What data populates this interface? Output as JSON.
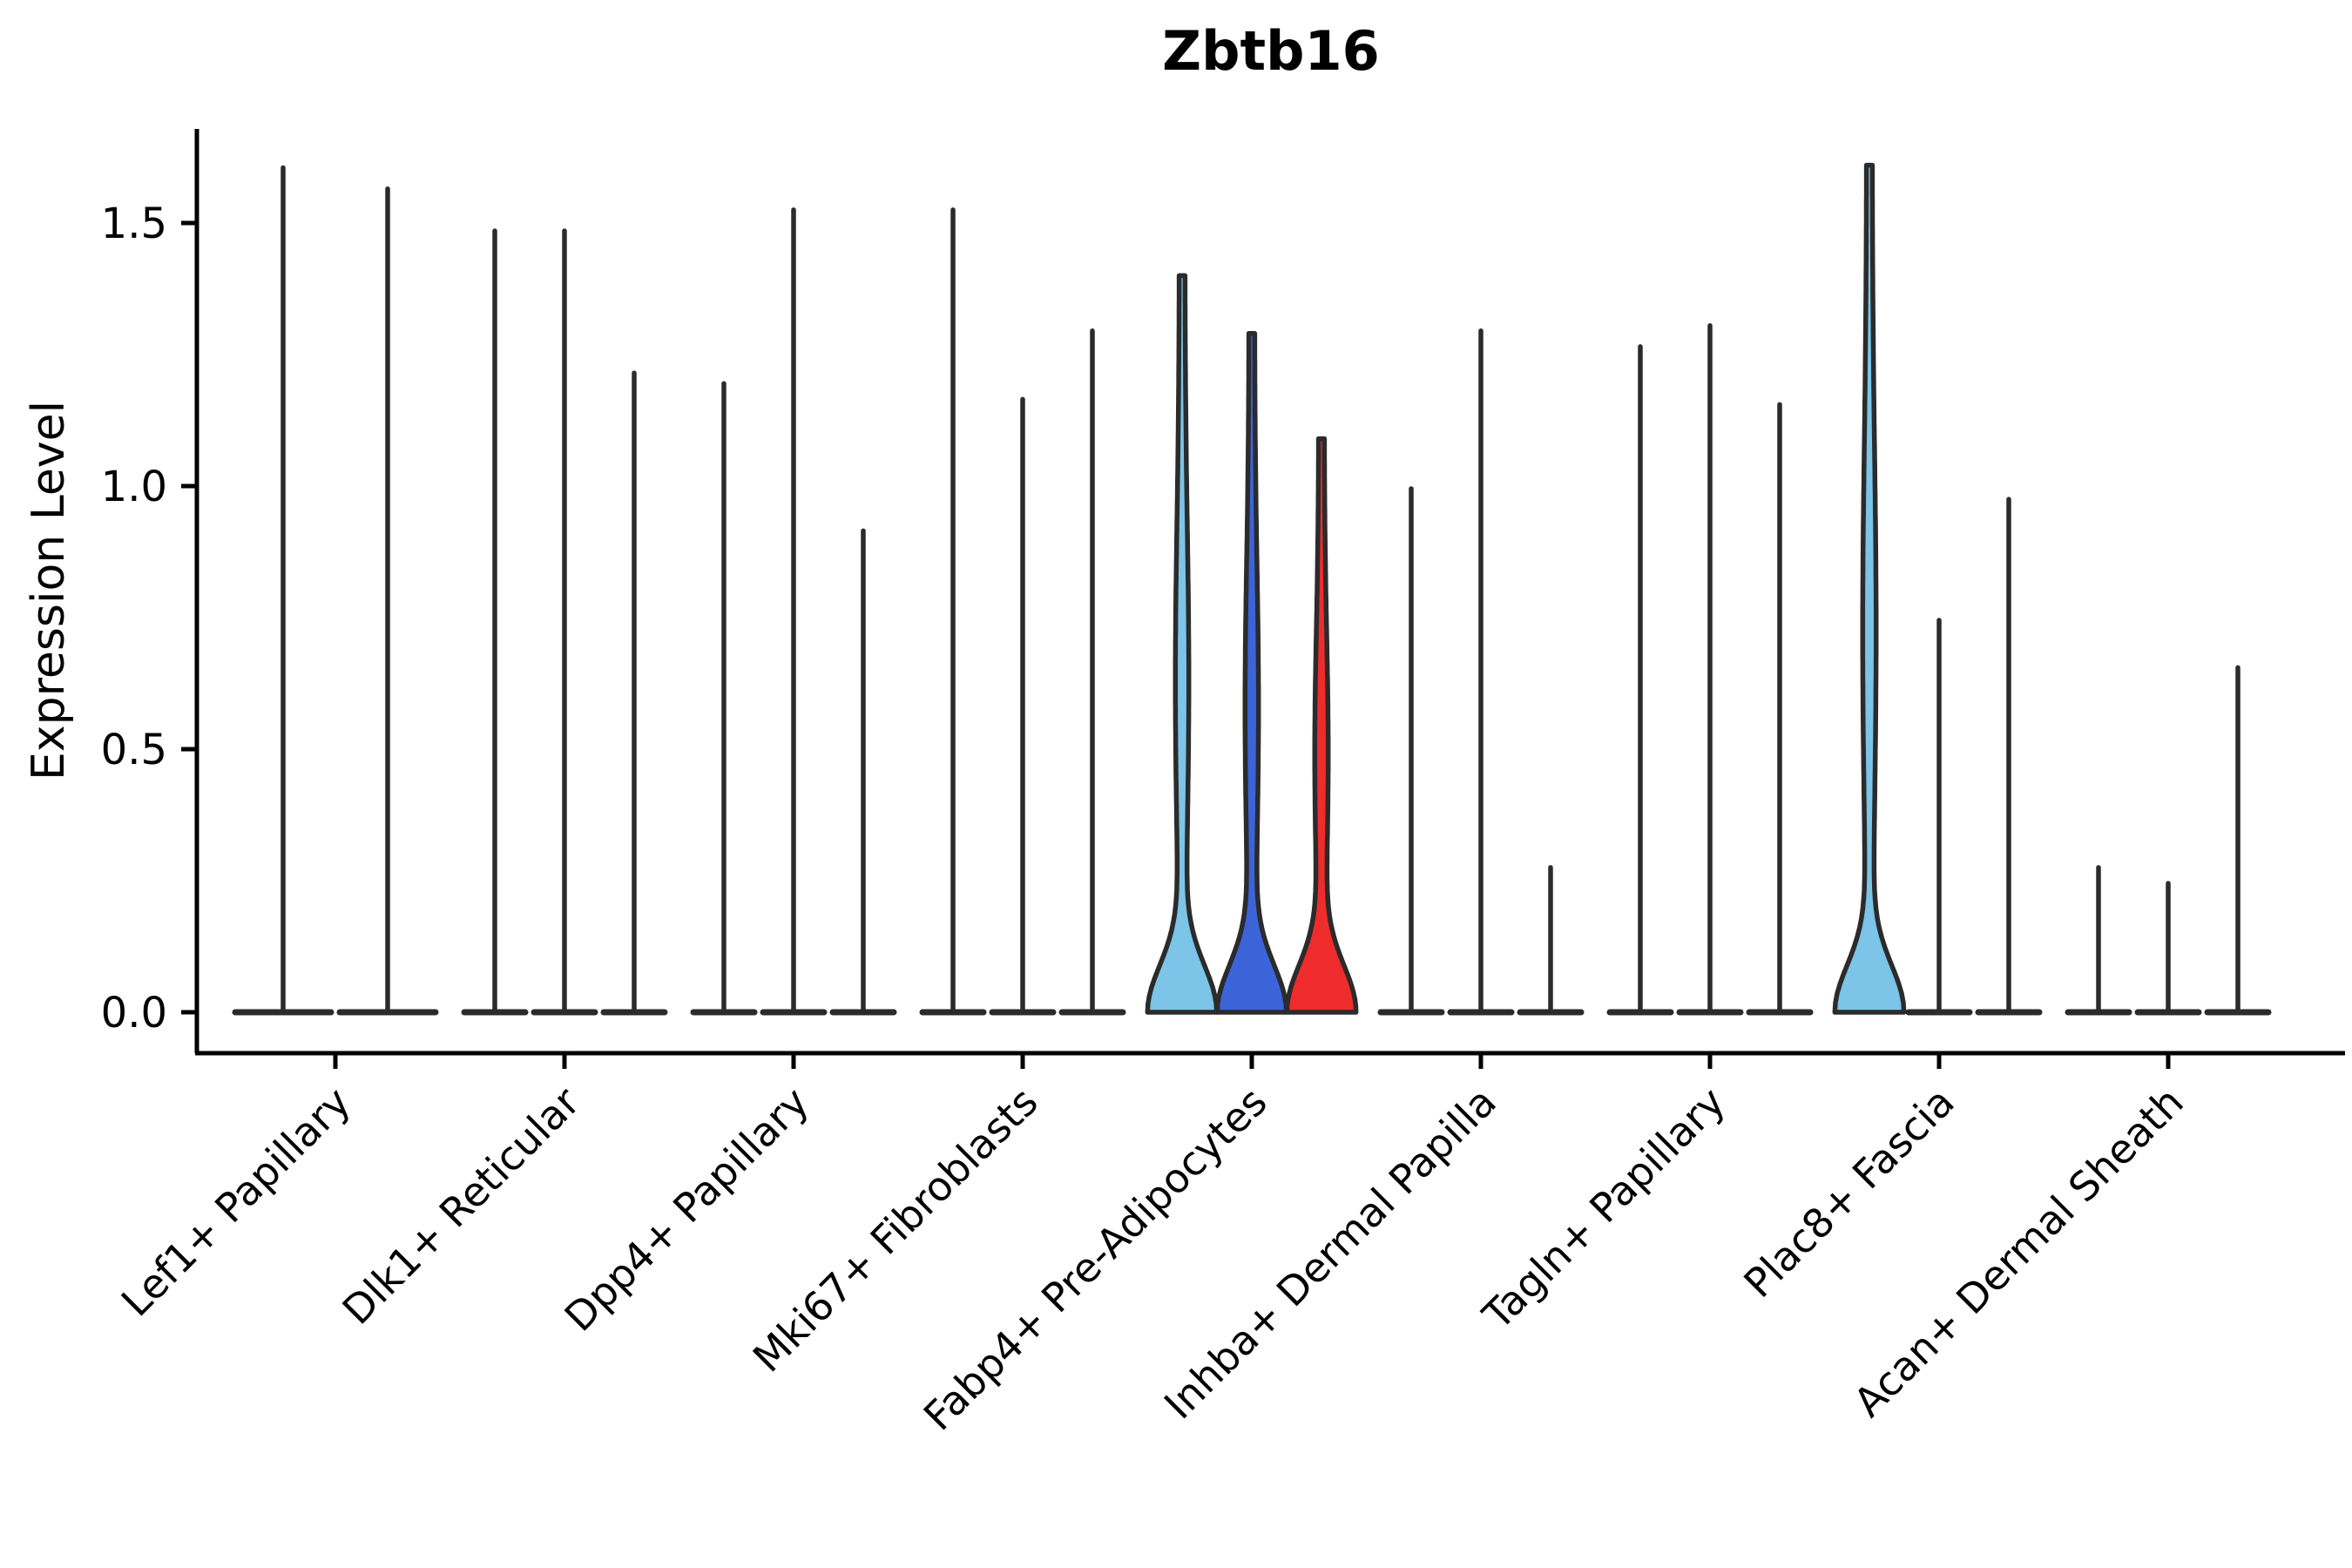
{
  "figure": {
    "title": "Zbtb16",
    "background_color": "#FFFFFF",
    "violin_edge_color": "#2B2B2B",
    "axis_color": "#000000"
  },
  "chart_data": {
    "type": "violin",
    "title": "Zbtb16",
    "ylabel": "Expression Level",
    "xlabel": "",
    "yticks": [
      0.0,
      0.5,
      1.0,
      1.5
    ],
    "ytick_labels": [
      "0.0",
      "0.5",
      "1.0",
      "1.5"
    ],
    "ylim": [
      -0.078,
      1.68
    ],
    "grid": false,
    "legend": "none",
    "categories": [
      "Lef1+ Papillary",
      "Dlk1+ Reticular",
      "Dpp4+ Papillary",
      "Mki67+ Fibroblasts",
      "Fabp4+ Pre-Adipocytes",
      "Inhba+ Dermal Papilla",
      "Tagln+ Papillary",
      "Plac8+ Fascia",
      "Acan+ Dermal Sheath"
    ],
    "groups": [
      {
        "category": "Lef1+ Papillary",
        "violins": [
          {
            "max": 1.61,
            "fill": null
          },
          {
            "max": 1.57,
            "fill": null
          }
        ]
      },
      {
        "category": "Dlk1+ Reticular",
        "violins": [
          {
            "max": 1.49,
            "fill": null
          },
          {
            "max": 1.49,
            "fill": null
          },
          {
            "max": 1.22,
            "fill": null
          }
        ]
      },
      {
        "category": "Dpp4+ Papillary",
        "violins": [
          {
            "max": 1.2,
            "fill": null
          },
          {
            "max": 1.53,
            "fill": null
          },
          {
            "max": 0.92,
            "fill": null
          }
        ]
      },
      {
        "category": "Mki67+ Fibroblasts",
        "violins": [
          {
            "max": 1.53,
            "fill": null
          },
          {
            "max": 1.17,
            "fill": null
          },
          {
            "max": 1.3,
            "fill": null
          }
        ]
      },
      {
        "category": "Fabp4+ Pre-Adipocytes",
        "violins": [
          {
            "max": 1.4,
            "fill": "#7CC4E8"
          },
          {
            "max": 1.29,
            "fill": "#3C64D9"
          },
          {
            "max": 1.09,
            "fill": "#EE2C2C"
          }
        ]
      },
      {
        "category": "Inhba+ Dermal Papilla",
        "violins": [
          {
            "max": 1.0,
            "fill": null
          },
          {
            "max": 1.3,
            "fill": null
          },
          {
            "max": 0.28,
            "fill": null
          }
        ]
      },
      {
        "category": "Tagln+ Papillary",
        "violins": [
          {
            "max": 1.27,
            "fill": null
          },
          {
            "max": 1.31,
            "fill": null
          },
          {
            "max": 1.16,
            "fill": null
          }
        ]
      },
      {
        "category": "Plac8+ Fascia",
        "violins": [
          {
            "max": 1.61,
            "fill": "#7CC4E8"
          },
          {
            "max": 0.75,
            "fill": null
          },
          {
            "max": 0.98,
            "fill": null
          }
        ]
      },
      {
        "category": "Acan+ Dermal Sheath",
        "violins": [
          {
            "max": 0.28,
            "fill": null
          },
          {
            "max": 0.25,
            "fill": null
          },
          {
            "max": 0.66,
            "fill": null
          }
        ]
      }
    ]
  }
}
